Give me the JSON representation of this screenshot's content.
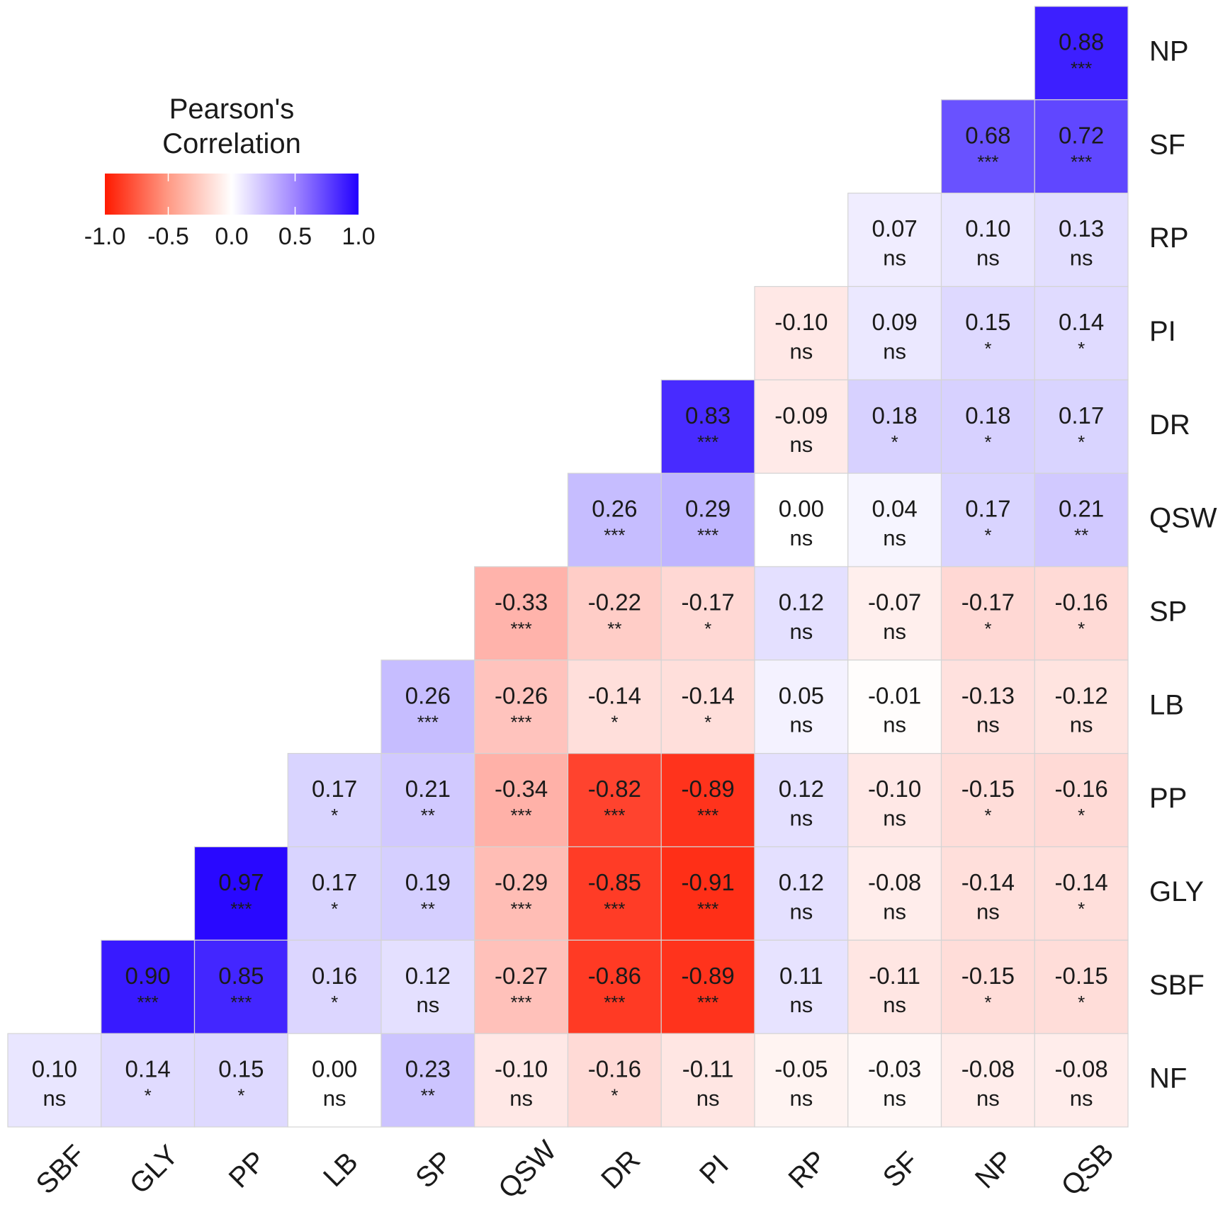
{
  "chart_data": {
    "type": "heatmap",
    "title": "",
    "x_labels": [
      "SBF",
      "GLY",
      "PP",
      "LB",
      "SP",
      "QSW",
      "DR",
      "PI",
      "RP",
      "SF",
      "NP",
      "QSB"
    ],
    "y_labels": [
      "NP",
      "SF",
      "RP",
      "PI",
      "DR",
      "QSW",
      "SP",
      "LB",
      "PP",
      "GLY",
      "SBF",
      "NF"
    ],
    "cells": [
      [
        null,
        null,
        null,
        null,
        null,
        null,
        null,
        null,
        null,
        null,
        null,
        0.88
      ],
      [
        null,
        null,
        null,
        null,
        null,
        null,
        null,
        null,
        null,
        null,
        0.68,
        0.72
      ],
      [
        null,
        null,
        null,
        null,
        null,
        null,
        null,
        null,
        null,
        0.07,
        0.1,
        0.13
      ],
      [
        null,
        null,
        null,
        null,
        null,
        null,
        null,
        null,
        -0.1,
        0.09,
        0.15,
        0.14
      ],
      [
        null,
        null,
        null,
        null,
        null,
        null,
        null,
        0.83,
        -0.09,
        0.18,
        0.18,
        0.17
      ],
      [
        null,
        null,
        null,
        null,
        null,
        null,
        0.26,
        0.29,
        0.0,
        0.04,
        0.17,
        0.21
      ],
      [
        null,
        null,
        null,
        null,
        null,
        -0.33,
        -0.22,
        -0.17,
        0.12,
        -0.07,
        -0.17,
        -0.16
      ],
      [
        null,
        null,
        null,
        null,
        0.26,
        -0.26,
        -0.14,
        -0.14,
        0.05,
        -0.01,
        -0.13,
        -0.12
      ],
      [
        null,
        null,
        null,
        0.17,
        0.21,
        -0.34,
        -0.82,
        -0.89,
        0.12,
        -0.1,
        -0.15,
        -0.16
      ],
      [
        null,
        null,
        0.97,
        0.17,
        0.19,
        -0.29,
        -0.85,
        -0.91,
        0.12,
        -0.08,
        -0.14,
        -0.14
      ],
      [
        null,
        0.9,
        0.85,
        0.16,
        0.12,
        -0.27,
        -0.86,
        -0.89,
        0.11,
        -0.11,
        -0.15,
        -0.15
      ],
      [
        0.1,
        0.14,
        0.15,
        0.0,
        0.23,
        -0.1,
        -0.16,
        -0.11,
        -0.05,
        -0.03,
        -0.08,
        -0.08
      ]
    ],
    "value_labels": [
      [
        null,
        null,
        null,
        null,
        null,
        null,
        null,
        null,
        null,
        null,
        null,
        "0.88"
      ],
      [
        null,
        null,
        null,
        null,
        null,
        null,
        null,
        null,
        null,
        null,
        "0.68",
        "0.72"
      ],
      [
        null,
        null,
        null,
        null,
        null,
        null,
        null,
        null,
        null,
        "0.07",
        "0.10",
        "0.13"
      ],
      [
        null,
        null,
        null,
        null,
        null,
        null,
        null,
        null,
        "-0.10",
        "0.09",
        "0.15",
        "0.14"
      ],
      [
        null,
        null,
        null,
        null,
        null,
        null,
        null,
        "0.83",
        "-0.09",
        "0.18",
        "0.18",
        "0.17"
      ],
      [
        null,
        null,
        null,
        null,
        null,
        null,
        "0.26",
        "0.29",
        "0.00",
        "0.04",
        "0.17",
        "0.21"
      ],
      [
        null,
        null,
        null,
        null,
        null,
        "-0.33",
        "-0.22",
        "-0.17",
        "0.12",
        "-0.07",
        "-0.17",
        "-0.16"
      ],
      [
        null,
        null,
        null,
        null,
        "0.26",
        "-0.26",
        "-0.14",
        "-0.14",
        "0.05",
        "-0.01",
        "-0.13",
        "-0.12"
      ],
      [
        null,
        null,
        null,
        "0.17",
        "0.21",
        "-0.34",
        "-0.82",
        "-0.89",
        "0.12",
        "-0.10",
        "-0.15",
        "-0.16"
      ],
      [
        null,
        null,
        "0.97",
        "0.17",
        "0.19",
        "-0.29",
        "-0.85",
        "-0.91",
        "0.12",
        "-0.08",
        "-0.14",
        "-0.14"
      ],
      [
        null,
        "0.90",
        "0.85",
        "0.16",
        "0.12",
        "-0.27",
        "-0.86",
        "-0.89",
        "0.11",
        "-0.11",
        "-0.15",
        "-0.15"
      ],
      [
        "0.10",
        "0.14",
        "0.15",
        "0.00",
        "0.23",
        "-0.10",
        "-0.16",
        "-0.11",
        "-0.05",
        "-0.03",
        "-0.08",
        "-0.08"
      ]
    ],
    "significance": [
      [
        null,
        null,
        null,
        null,
        null,
        null,
        null,
        null,
        null,
        null,
        null,
        "***"
      ],
      [
        null,
        null,
        null,
        null,
        null,
        null,
        null,
        null,
        null,
        null,
        "***",
        "***"
      ],
      [
        null,
        null,
        null,
        null,
        null,
        null,
        null,
        null,
        null,
        "ns",
        "ns",
        "ns"
      ],
      [
        null,
        null,
        null,
        null,
        null,
        null,
        null,
        null,
        "ns",
        "ns",
        "*",
        "*"
      ],
      [
        null,
        null,
        null,
        null,
        null,
        null,
        null,
        "***",
        "ns",
        "*",
        "*",
        "*"
      ],
      [
        null,
        null,
        null,
        null,
        null,
        null,
        "***",
        "***",
        "ns",
        "ns",
        "*",
        "**"
      ],
      [
        null,
        null,
        null,
        null,
        null,
        "***",
        "**",
        "*",
        "ns",
        "ns",
        "*",
        "*"
      ],
      [
        null,
        null,
        null,
        null,
        "***",
        "***",
        "*",
        "*",
        "ns",
        "ns",
        "ns",
        "ns"
      ],
      [
        null,
        null,
        null,
        "*",
        "**",
        "***",
        "***",
        "***",
        "ns",
        "ns",
        "*",
        "*"
      ],
      [
        null,
        null,
        "***",
        "*",
        "**",
        "***",
        "***",
        "***",
        "ns",
        "ns",
        "ns",
        "*"
      ],
      [
        null,
        "***",
        "***",
        "*",
        "ns",
        "***",
        "***",
        "***",
        "ns",
        "ns",
        "*",
        "*"
      ],
      [
        "ns",
        "*",
        "*",
        "ns",
        "**",
        "ns",
        "*",
        "ns",
        "ns",
        "ns",
        "ns",
        "ns"
      ]
    ],
    "value_range": [
      -1.0,
      1.0
    ],
    "legend": {
      "title_line1": "Pearson's",
      "title_line2": "Correlation",
      "ticks": [
        -1.0,
        -0.5,
        0.0,
        0.5,
        1.0
      ],
      "tick_labels": [
        "-1.0",
        "-0.5",
        "0.0",
        "0.5",
        "1.0"
      ],
      "position": "top-left"
    },
    "colors": {
      "negative": "#ff1a00",
      "neutral": "#ffffff",
      "positive": "#2200ff",
      "grid": "#d4d4d4",
      "text": "#1a1a1a"
    }
  }
}
